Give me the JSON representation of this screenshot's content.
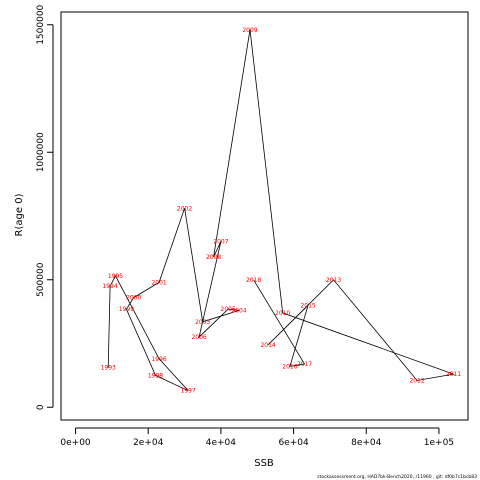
{
  "chart_data": {
    "type": "line",
    "xlabel": "SSB",
    "ylabel": "R(age 0)",
    "xlim": [
      -4000,
      108000
    ],
    "ylim": [
      -50000,
      1550000
    ],
    "x_ticks": [
      0,
      20000,
      40000,
      60000,
      80000,
      100000
    ],
    "x_tick_labels": [
      "0e+00",
      "2e+04",
      "4e+04",
      "6e+04",
      "8e+04",
      "1e+05"
    ],
    "y_ticks": [
      0,
      500000,
      1000000,
      1500000
    ],
    "y_tick_labels": [
      "0",
      "500000",
      "1000000",
      "1500000"
    ],
    "line_color": "#000000",
    "label_color": "#ff0000",
    "points": [
      {
        "year": "1993",
        "x": 9000,
        "y": 155000
      },
      {
        "year": "1994",
        "x": 9500,
        "y": 475000
      },
      {
        "year": "1995",
        "x": 11000,
        "y": 515000
      },
      {
        "year": "1996",
        "x": 23000,
        "y": 190000
      },
      {
        "year": "1997",
        "x": 31000,
        "y": 65000
      },
      {
        "year": "1998",
        "x": 22000,
        "y": 125000
      },
      {
        "year": "1999",
        "x": 14000,
        "y": 385000
      },
      {
        "year": "2000",
        "x": 16000,
        "y": 430000
      },
      {
        "year": "2001",
        "x": 23000,
        "y": 490000
      },
      {
        "year": "2002",
        "x": 30000,
        "y": 780000
      },
      {
        "year": "2003",
        "x": 35000,
        "y": 335000
      },
      {
        "year": "2004",
        "x": 45000,
        "y": 380000
      },
      {
        "year": "2005",
        "x": 42000,
        "y": 385000
      },
      {
        "year": "2006",
        "x": 34000,
        "y": 275000
      },
      {
        "year": "2007",
        "x": 40000,
        "y": 650000
      },
      {
        "year": "2008",
        "x": 38000,
        "y": 590000
      },
      {
        "year": "2009",
        "x": 48000,
        "y": 1480000
      },
      {
        "year": "2010",
        "x": 57000,
        "y": 370000
      },
      {
        "year": "2011",
        "x": 104000,
        "y": 130000
      },
      {
        "year": "2012",
        "x": 94000,
        "y": 105000
      },
      {
        "year": "2013",
        "x": 71000,
        "y": 500000
      },
      {
        "year": "2014",
        "x": 53000,
        "y": 245000
      },
      {
        "year": "2015",
        "x": 64000,
        "y": 400000
      },
      {
        "year": "2016",
        "x": 59000,
        "y": 160000
      },
      {
        "year": "2017",
        "x": 63000,
        "y": 170000
      },
      {
        "year": "2018",
        "x": 49000,
        "y": 500000
      }
    ]
  },
  "footer": {
    "caption": "stockassessment.org,  HAD7bk-Bench2020,  r11960 ,  git:  df0b7c1bcb83"
  }
}
